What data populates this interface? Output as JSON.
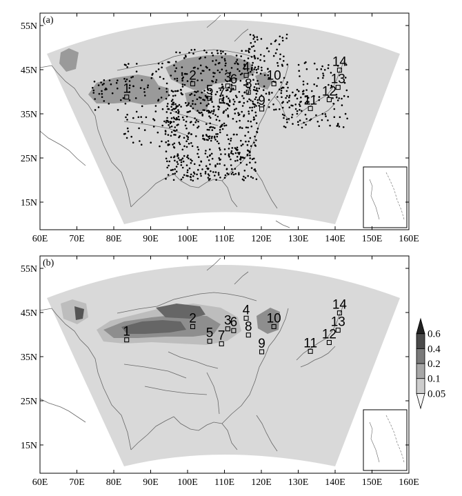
{
  "panels": [
    {
      "letter": "(a)"
    },
    {
      "letter": "(b)"
    }
  ],
  "x_ticks": [
    "60E",
    "70E",
    "80E",
    "90E",
    "100E",
    "110E",
    "120E",
    "130E",
    "140E",
    "150E",
    "160E"
  ],
  "y_ticks": [
    "55N",
    "45N",
    "35N",
    "25N",
    "15N"
  ],
  "sites": [
    {
      "label": "1",
      "lon": 83.5,
      "lat": 38.8
    },
    {
      "label": "2",
      "lon": 101.4,
      "lat": 41.8
    },
    {
      "label": "3",
      "lon": 110.9,
      "lat": 41.3
    },
    {
      "label": "4",
      "lon": 115.9,
      "lat": 43.7
    },
    {
      "label": "5",
      "lon": 106.0,
      "lat": 38.5
    },
    {
      "label": "6",
      "lon": 112.5,
      "lat": 40.9
    },
    {
      "label": "7",
      "lon": 109.2,
      "lat": 37.9
    },
    {
      "label": "8",
      "lon": 116.5,
      "lat": 39.9
    },
    {
      "label": "9",
      "lon": 120.1,
      "lat": 36.1
    },
    {
      "label": "10",
      "lon": 123.4,
      "lat": 41.8
    },
    {
      "label": "11",
      "lon": 133.3,
      "lat": 36.2
    },
    {
      "label": "12",
      "lon": 138.4,
      "lat": 38.2
    },
    {
      "label": "13",
      "lon": 140.8,
      "lat": 41.0
    },
    {
      "label": "14",
      "lon": 141.2,
      "lat": 44.9
    }
  ],
  "colorbar": {
    "levels": [
      "0.05",
      "0.1",
      "0.2",
      "0.4",
      "0.6"
    ],
    "colors": [
      "#f5f5f5",
      "#cdcdcd",
      "#a7a7a7",
      "#7a7a7a",
      "#4a4a4a",
      "#222222"
    ]
  },
  "colors": {
    "domain": "#d9d9d9",
    "dust_source": "#9a9a9a",
    "station_dot": "#000000",
    "coast": "#666666"
  }
}
